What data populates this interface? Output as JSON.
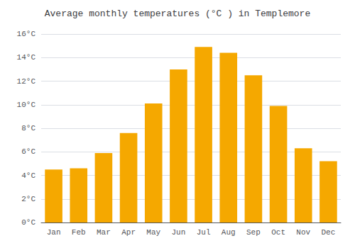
{
  "chart_data": {
    "type": "bar",
    "title": "Average monthly temperatures (°C ) in Templemore",
    "categories": [
      "Jan",
      "Feb",
      "Mar",
      "Apr",
      "May",
      "Jun",
      "Jul",
      "Aug",
      "Sep",
      "Oct",
      "Nov",
      "Dec"
    ],
    "values": [
      4.5,
      4.6,
      5.9,
      7.6,
      10.1,
      13.0,
      14.9,
      14.4,
      12.5,
      9.9,
      6.3,
      5.2
    ],
    "color": "#F5A800",
    "ylim": [
      0,
      16
    ],
    "yticks": [
      {
        "value": 0,
        "label": "0°C"
      },
      {
        "value": 2,
        "label": "2°C"
      },
      {
        "value": 4,
        "label": "4°C"
      },
      {
        "value": 6,
        "label": "6°C"
      },
      {
        "value": 8,
        "label": "8°C"
      },
      {
        "value": 10,
        "label": "10°C"
      },
      {
        "value": 12,
        "label": "12°C"
      },
      {
        "value": 14,
        "label": "14°C"
      },
      {
        "value": 16,
        "label": "16°C"
      }
    ],
    "grid": true
  }
}
